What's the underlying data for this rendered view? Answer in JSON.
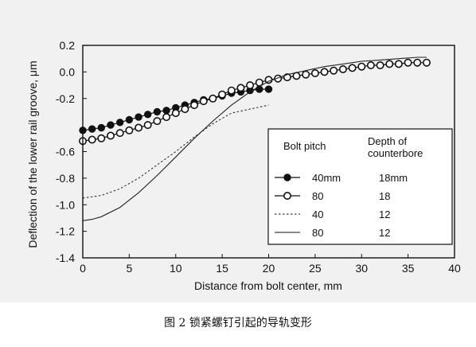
{
  "caption": "图 2 锁紧螺钉引起的导轨变形",
  "chart_data": {
    "type": "line",
    "title": "",
    "xlabel": "Distance from bolt center, mm",
    "ylabel": "Deflection of the lower rail groove, μm",
    "xlim": [
      0,
      40
    ],
    "ylim": [
      -1.4,
      0.2
    ],
    "xticks": [
      0,
      5,
      10,
      15,
      20,
      25,
      30,
      35,
      40
    ],
    "yticks": [
      0.2,
      0.0,
      -0.2,
      -0.6,
      -0.8,
      -1.0,
      -1.2,
      -1.4
    ],
    "ytick_labels": [
      "0.2",
      "0.0",
      "-0.2",
      "-0.6",
      "-0.8",
      "-1.0",
      "-1.2",
      "-1.4"
    ],
    "grid": false,
    "legend": {
      "placement": "bottom-right",
      "header_col1": "Bolt pitch",
      "header_col2_line1": "Depth of",
      "header_col2_line2": "counterbore",
      "entries": [
        {
          "pitch": "40mm",
          "depth": "18mm"
        },
        {
          "pitch": "80",
          "depth": "18"
        },
        {
          "pitch": "40",
          "depth": "12"
        },
        {
          "pitch": "80",
          "depth": "12"
        }
      ]
    },
    "series": [
      {
        "style": "filled-circle",
        "x": [
          0,
          1,
          2,
          3,
          4,
          5,
          6,
          7,
          8,
          9,
          10,
          11,
          12,
          13,
          14,
          15,
          16,
          17,
          18,
          19,
          20
        ],
        "y": [
          -0.44,
          -0.43,
          -0.42,
          -0.4,
          -0.38,
          -0.36,
          -0.34,
          -0.32,
          -0.3,
          -0.29,
          -0.27,
          -0.25,
          -0.23,
          -0.21,
          -0.2,
          -0.18,
          -0.16,
          -0.15,
          -0.14,
          -0.13,
          -0.13
        ]
      },
      {
        "style": "open-circle",
        "x": [
          0,
          1,
          2,
          3,
          4,
          5,
          6,
          7,
          8,
          9,
          10,
          11,
          12,
          13,
          14,
          15,
          16,
          17,
          18,
          19,
          20,
          21,
          22,
          23,
          24,
          25,
          26,
          27,
          28,
          29,
          30,
          31,
          32,
          33,
          34,
          35,
          36,
          37
        ],
        "y": [
          -0.52,
          -0.51,
          -0.5,
          -0.48,
          -0.46,
          -0.44,
          -0.42,
          -0.4,
          -0.37,
          -0.34,
          -0.31,
          -0.28,
          -0.25,
          -0.22,
          -0.2,
          -0.17,
          -0.14,
          -0.12,
          -0.1,
          -0.08,
          -0.06,
          -0.05,
          -0.04,
          -0.03,
          -0.02,
          -0.01,
          0.0,
          0.01,
          0.02,
          0.03,
          0.04,
          0.05,
          0.05,
          0.06,
          0.06,
          0.07,
          0.07,
          0.07
        ]
      },
      {
        "style": "dashed",
        "x": [
          0,
          2,
          4,
          6,
          8,
          10,
          12,
          14,
          15,
          16,
          18,
          20
        ],
        "y": [
          -0.95,
          -0.93,
          -0.88,
          -0.8,
          -0.7,
          -0.6,
          -0.49,
          -0.39,
          -0.35,
          -0.31,
          -0.28,
          -0.25
        ]
      },
      {
        "style": "solid",
        "x": [
          0,
          1,
          2,
          4,
          6,
          8,
          10,
          12,
          14,
          16,
          18,
          20,
          22,
          24,
          26,
          28,
          30,
          32,
          34,
          36,
          37
        ],
        "y": [
          -1.12,
          -1.11,
          -1.09,
          -1.02,
          -0.91,
          -0.78,
          -0.64,
          -0.5,
          -0.37,
          -0.25,
          -0.15,
          -0.07,
          -0.02,
          0.01,
          0.04,
          0.06,
          0.08,
          0.09,
          0.1,
          0.11,
          0.11
        ]
      }
    ]
  }
}
